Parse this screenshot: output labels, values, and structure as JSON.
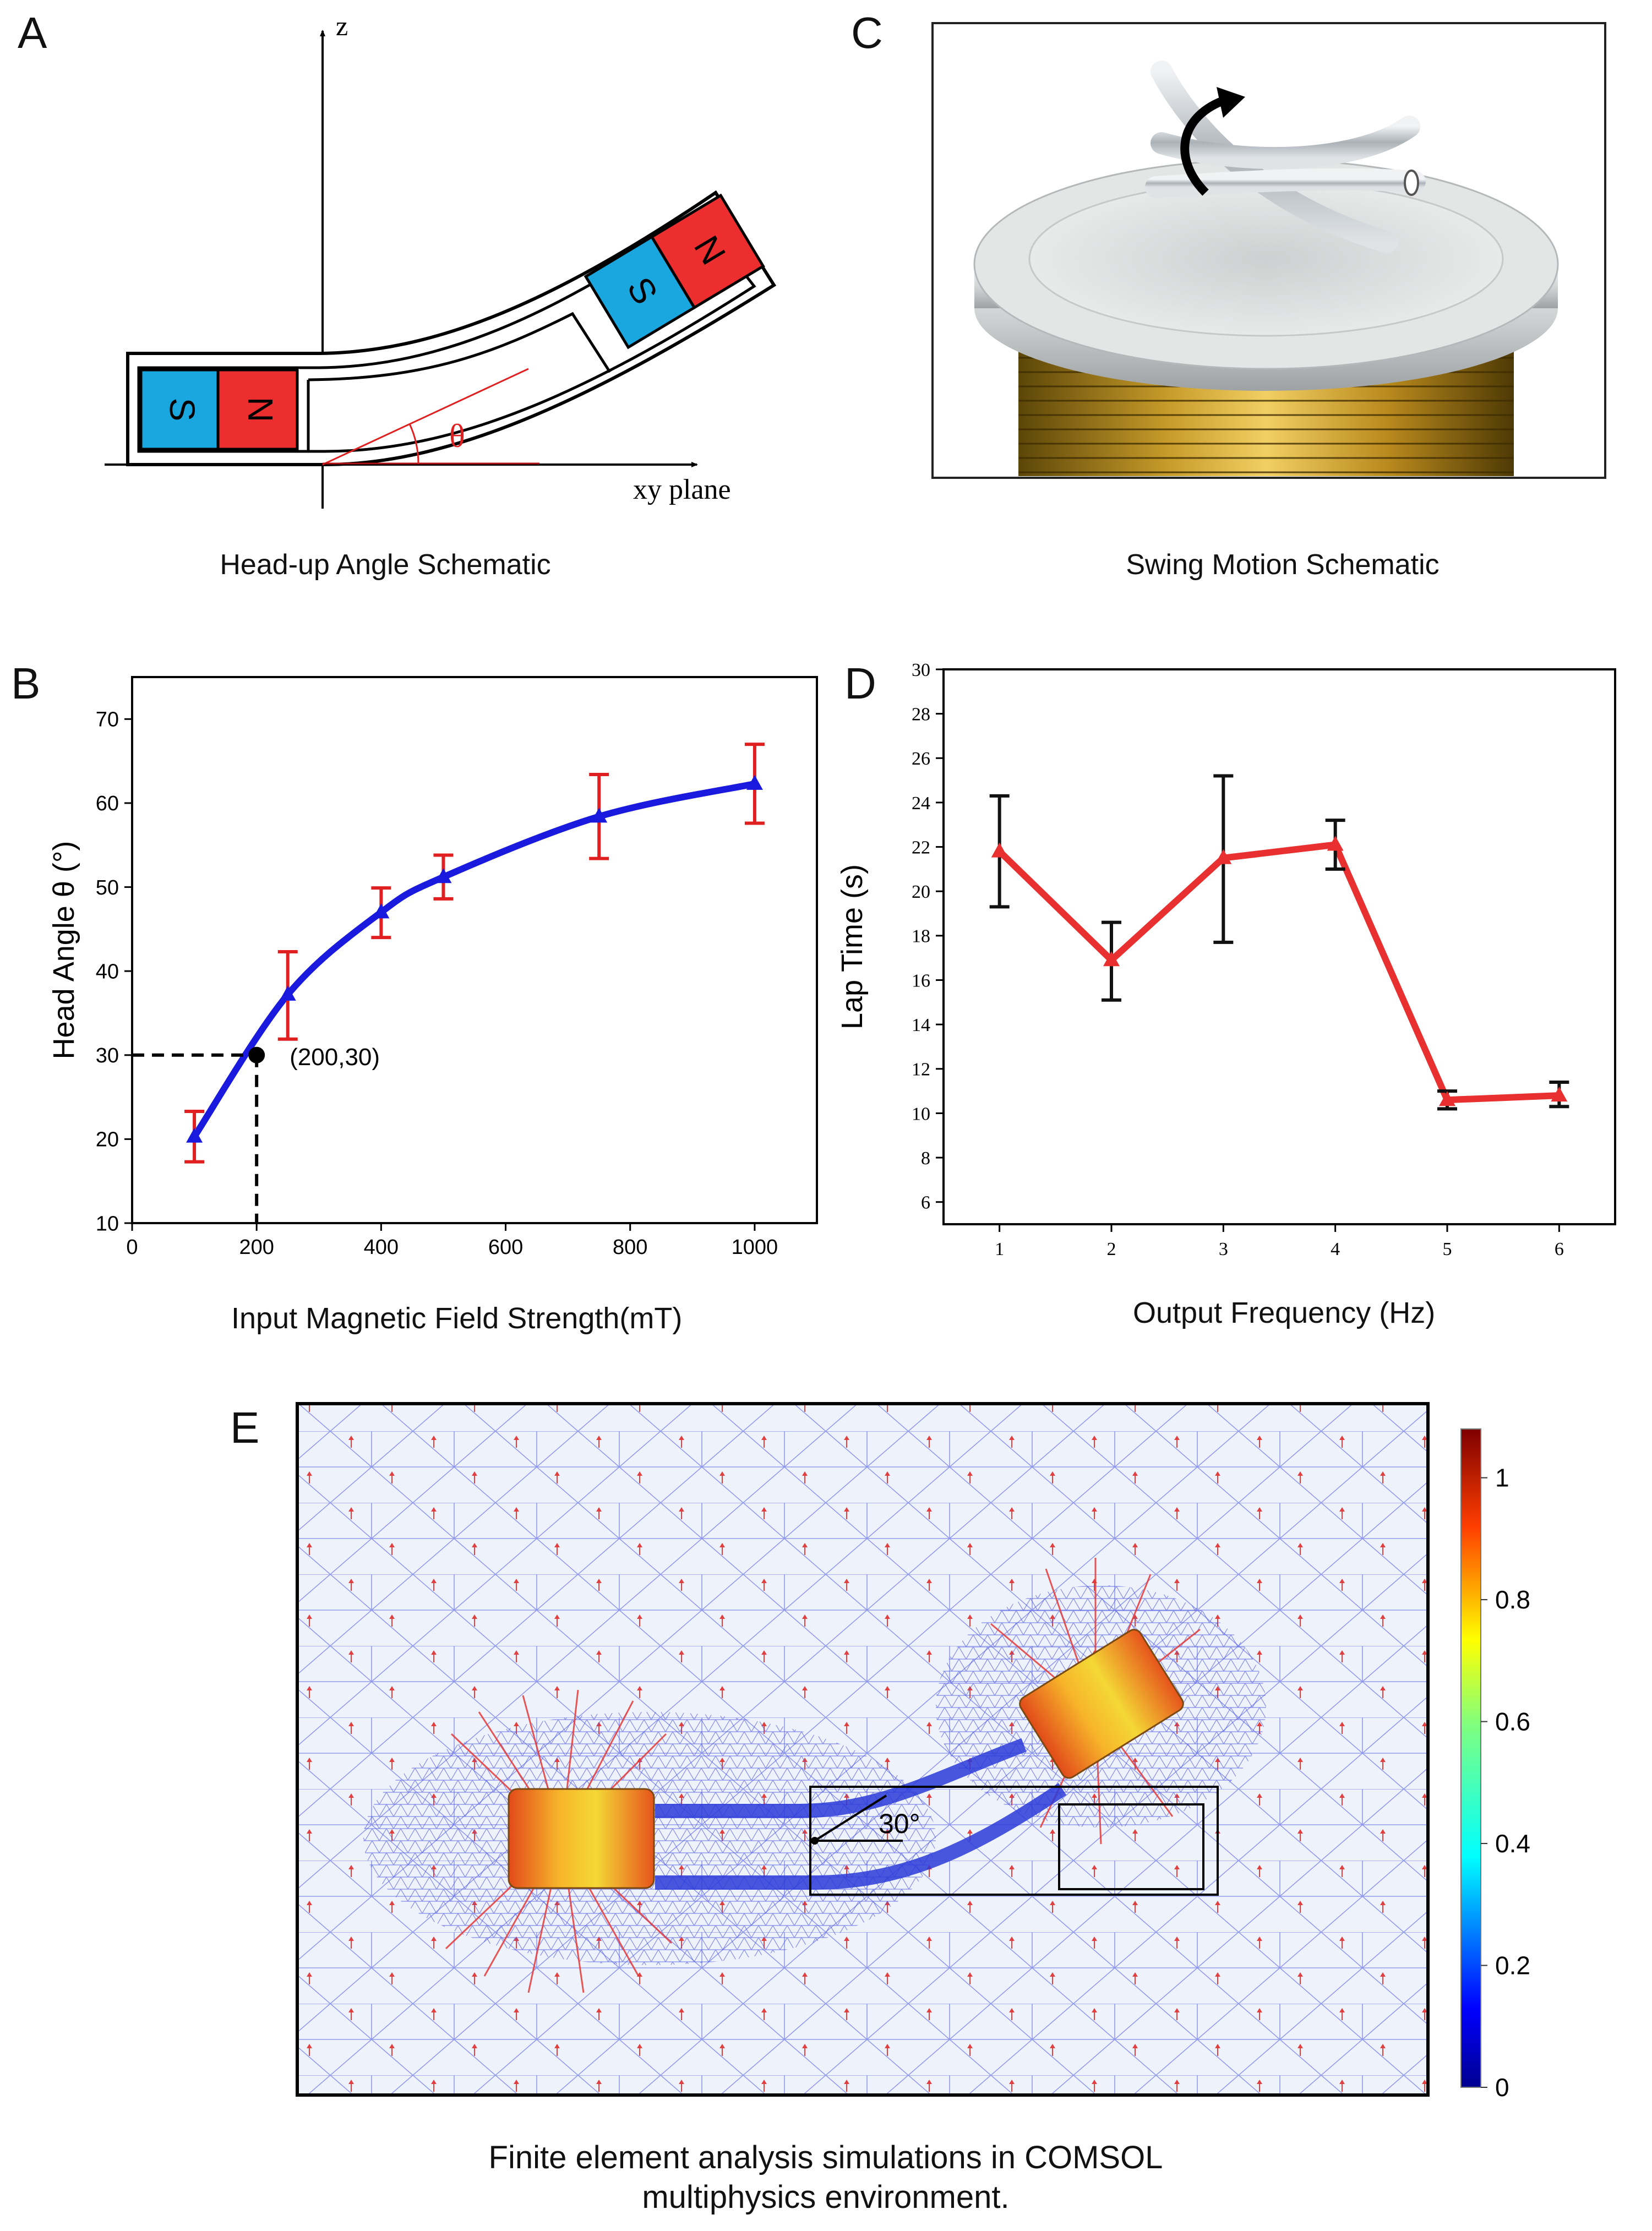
{
  "panels": {
    "a": {
      "letter": "A",
      "caption": "Head-up Angle Schematic",
      "z_label": "z",
      "xy_label": "xy plane",
      "theta": "θ",
      "magnet_s": "S",
      "magnet_n": "N"
    },
    "b": {
      "letter": "B"
    },
    "c": {
      "letter": "C",
      "caption": "Swing Motion Schematic"
    },
    "d": {
      "letter": "D"
    },
    "e": {
      "letter": "E",
      "angle_label": "30°",
      "caption_line1": "Finite element analysis simulations in COMSOL",
      "caption_line2": "multiphysics environment."
    }
  },
  "chart_data": [
    {
      "id": "B",
      "type": "line",
      "xlabel": "Input Magnetic Field Strength(mT)",
      "ylabel": "Head Angle θ (°)",
      "xlim": [
        0,
        1100
      ],
      "ylim": [
        10,
        75
      ],
      "xticks": [
        0,
        200,
        400,
        600,
        800,
        1000
      ],
      "yticks": [
        10,
        20,
        30,
        40,
        50,
        60,
        70
      ],
      "x": [
        100,
        250,
        400,
        500,
        750,
        1000
      ],
      "y": [
        20.3,
        37.2,
        47.0,
        51.2,
        58.4,
        62.3
      ],
      "err_low": [
        17.3,
        31.9,
        44.0,
        48.6,
        53.4,
        57.6
      ],
      "err_high": [
        23.3,
        42.3,
        49.9,
        53.8,
        63.4,
        67.0
      ],
      "annotation": {
        "x": 200,
        "y": 30,
        "text": "(200,30)"
      },
      "line_color": "#1a1adf",
      "error_color": "#e02020"
    },
    {
      "id": "D",
      "type": "line",
      "xlabel": "Output Frequency (Hz)",
      "ylabel": "Lap Time (s)",
      "xlim": [
        0.5,
        6.5
      ],
      "ylim": [
        5,
        30
      ],
      "xticks": [
        1,
        2,
        3,
        4,
        5,
        6
      ],
      "yticks": [
        6,
        8,
        10,
        12,
        14,
        16,
        18,
        20,
        22,
        24,
        26,
        28,
        30
      ],
      "x": [
        1,
        2,
        3,
        4,
        5,
        6
      ],
      "y": [
        21.8,
        16.9,
        21.5,
        22.1,
        10.6,
        10.8
      ],
      "err_low": [
        19.3,
        15.1,
        17.7,
        21.0,
        10.2,
        10.3
      ],
      "err_high": [
        24.3,
        18.6,
        25.2,
        23.2,
        11.0,
        11.4
      ],
      "line_color": "#e83030",
      "error_color": "#111111"
    },
    {
      "id": "E-colorbar",
      "type": "heatmap",
      "ticks": [
        0,
        0.2,
        0.4,
        0.6,
        0.8,
        1
      ],
      "range": [
        0,
        1.08
      ]
    }
  ]
}
